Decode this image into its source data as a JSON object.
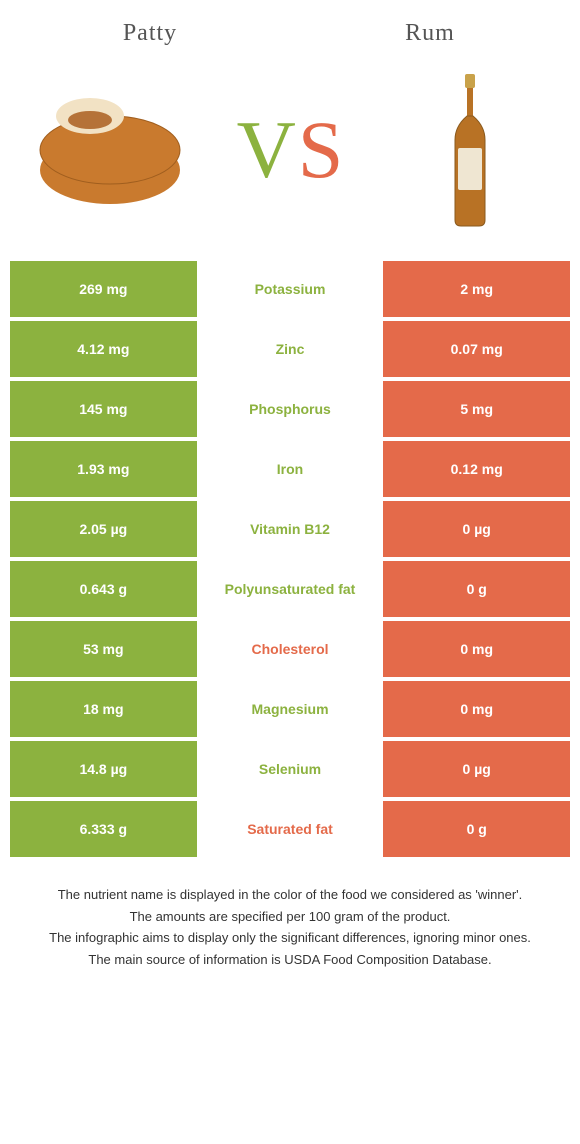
{
  "colors": {
    "left_bg": "#8cb23f",
    "left_text": "#ffffff",
    "mid_bg": "#ffffff",
    "right_bg": "#e46a4a",
    "right_text": "#ffffff",
    "winner_left_label": "#8cb23f",
    "winner_right_label": "#e46a4a",
    "header_text": "#555555"
  },
  "header": {
    "left_title": "Patty",
    "right_title": "Rum"
  },
  "vs": {
    "v_color": "#8cb23f",
    "s_color": "#e46a4a",
    "v_text": "V",
    "s_text": "S"
  },
  "rows": [
    {
      "left": "269 mg",
      "label": "Potassium",
      "right": "2 mg",
      "winner": "left"
    },
    {
      "left": "4.12 mg",
      "label": "Zinc",
      "right": "0.07 mg",
      "winner": "left"
    },
    {
      "left": "145 mg",
      "label": "Phosphorus",
      "right": "5 mg",
      "winner": "left"
    },
    {
      "left": "1.93 mg",
      "label": "Iron",
      "right": "0.12 mg",
      "winner": "left"
    },
    {
      "left": "2.05 µg",
      "label": "Vitamin B12",
      "right": "0 µg",
      "winner": "left"
    },
    {
      "left": "0.643 g",
      "label": "Polyunsaturated fat",
      "right": "0 g",
      "winner": "left"
    },
    {
      "left": "53 mg",
      "label": "Cholesterol",
      "right": "0 mg",
      "winner": "right"
    },
    {
      "left": "18 mg",
      "label": "Magnesium",
      "right": "0 mg",
      "winner": "left"
    },
    {
      "left": "14.8 µg",
      "label": "Selenium",
      "right": "0 µg",
      "winner": "left"
    },
    {
      "left": "6.333 g",
      "label": "Saturated fat",
      "right": "0 g",
      "winner": "right"
    }
  ],
  "footnotes": [
    "The nutrient name is displayed in the color of the food we considered as 'winner'.",
    "The amounts are specified per 100 gram of the product.",
    "The infographic aims to display only the significant differences, ignoring minor ones.",
    "The main source of information is USDA Food Composition Database."
  ],
  "images": {
    "patty": {
      "body_fill": "#c97a2e",
      "body_stroke": "#a05e1e",
      "top_fill": "#f2e2c4",
      "inner_fill": "#b57238"
    },
    "rum": {
      "liquid_fill": "#b87225",
      "glass_stroke": "#8a5a1e",
      "cap_fill": "#c9a24a",
      "label_fill": "#efe6d2"
    }
  }
}
